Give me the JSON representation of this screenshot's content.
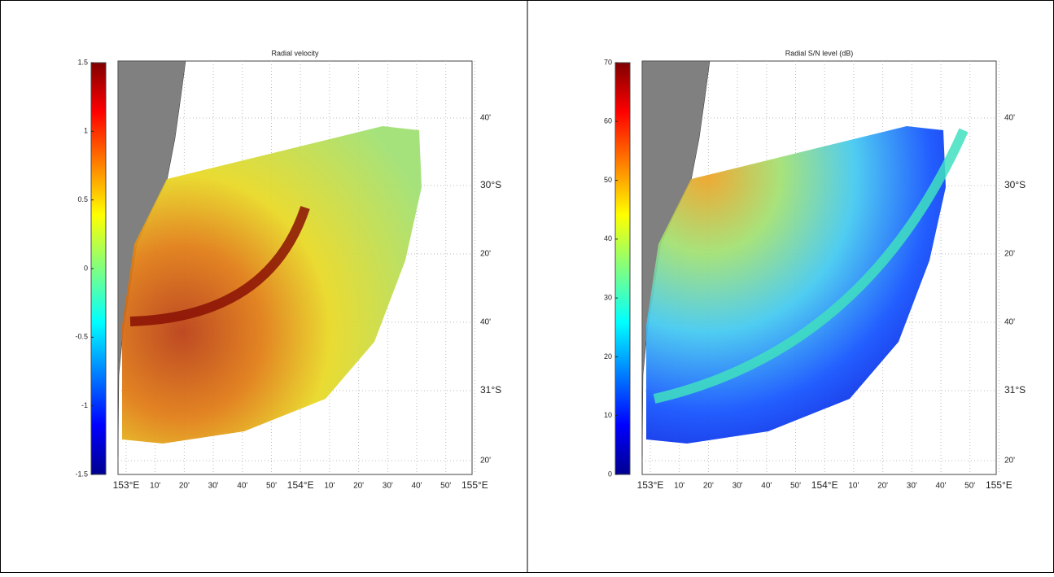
{
  "panels": [
    {
      "title": "Radial velocity",
      "colorbar": {
        "clim": [
          -1.5,
          1.5
        ],
        "ticks": [
          1.5,
          1,
          0.5,
          0,
          -0.5,
          -1,
          -1.5
        ]
      },
      "x_labels": [
        "153°E",
        "10'",
        "20'",
        "30'",
        "40'",
        "50'",
        "154°E",
        "10'",
        "20'",
        "30'",
        "40'",
        "50'",
        "155°E"
      ],
      "y_labels": [
        "40'",
        "30°S",
        "20'",
        "40'",
        "31°S",
        "20'"
      ]
    },
    {
      "title": "Radial S/N level (dB)",
      "colorbar": {
        "clim": [
          0,
          70
        ],
        "ticks": [
          70,
          60,
          50,
          40,
          30,
          20,
          10,
          0
        ]
      },
      "x_labels": [
        "153°E",
        "10'",
        "20'",
        "30'",
        "40'",
        "50'",
        "154°E",
        "10'",
        "20'",
        "30'",
        "40'",
        "50'",
        "155°E"
      ],
      "y_labels": [
        "40'",
        "30°S",
        "20'",
        "40'",
        "31°S",
        "20'"
      ]
    }
  ]
}
